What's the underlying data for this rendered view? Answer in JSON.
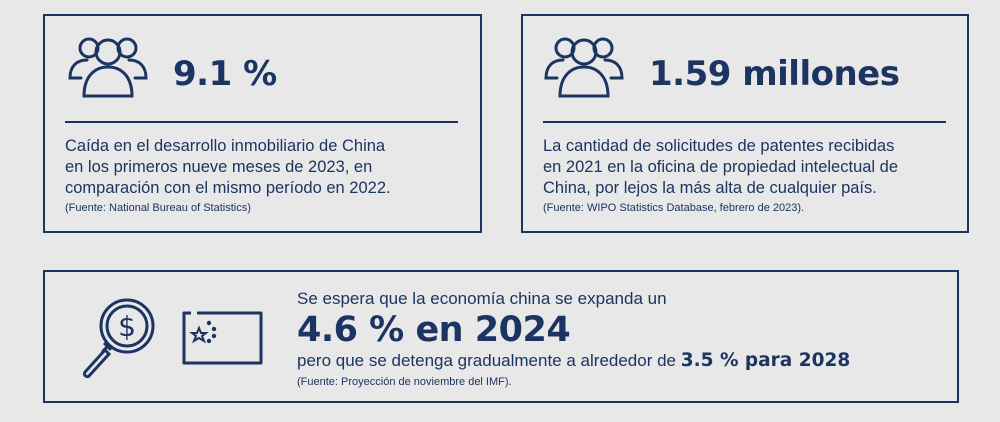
{
  "colors": {
    "navy": "#1c3461",
    "background": "#e8e8e8"
  },
  "card1": {
    "icon": "group-icon",
    "stat": "9.1 %",
    "description": [
      "Caída en el desarrollo inmobiliario de China",
      "en los primeros nueve meses de 2023, en",
      "comparación con el mismo período en 2022."
    ],
    "source": "(Fuente: National Bureau of Statistics)"
  },
  "card2": {
    "icon": "group-icon",
    "stat": "1.59 millones",
    "description": [
      "La cantidad de solicitudes de patentes recibidas",
      "en 2021 en la oficina de propiedad intelectual de",
      "China, por lejos la más alta de cualquier país."
    ],
    "source": "(Fuente: WIPO Statistics Database, febrero de 2023)."
  },
  "card3": {
    "icons": [
      "magnifier-dollar-icon",
      "china-flag-icon"
    ],
    "intro": "Se espera que la economía china se expanda un",
    "headline": "4.6 % en 2024",
    "line3_prefix": "pero que se detenga gradualmente a alrededor de ",
    "line3_bold": "3.5 % para 2028",
    "source": "(Fuente: Proyección de noviembre del IMF)."
  }
}
